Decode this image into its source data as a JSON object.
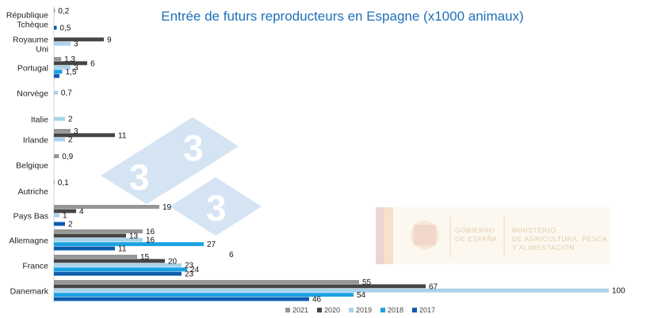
{
  "chart_data": {
    "type": "bar",
    "orientation": "horizontal",
    "title": "Entrée de futurs reproducteurs en Espagne (x1000 animaux)",
    "categories": [
      [
        "République",
        "Tchèque"
      ],
      [
        "Royaume",
        "Uni"
      ],
      [
        "Portugal"
      ],
      [
        "Norvège"
      ],
      [
        "Italie"
      ],
      [
        "Irlande"
      ],
      [
        "Belgique"
      ],
      [
        "Autriche"
      ],
      [
        "Pays Bas"
      ],
      [
        "Allemagne"
      ],
      [
        "France"
      ],
      [
        "Danemark"
      ]
    ],
    "series": [
      {
        "name": "2021",
        "color": "#969696",
        "values": [
          0.2,
          null,
          1.3,
          null,
          null,
          3,
          0.9,
          0.1,
          19,
          16,
          15,
          55
        ],
        "labels": [
          "0,2",
          "",
          "1,3",
          "",
          "",
          "3",
          "0,9",
          "0,1",
          "19",
          "16",
          "15",
          "55"
        ]
      },
      {
        "name": "2020",
        "color": "#454545",
        "values": [
          null,
          9,
          6,
          null,
          null,
          11,
          null,
          null,
          4,
          13,
          20,
          67
        ],
        "labels": [
          "",
          "9",
          "6",
          "",
          "",
          "11",
          "",
          "",
          "4",
          "13",
          "20",
          "67"
        ]
      },
      {
        "name": "2019",
        "color": "#a9d3ea",
        "values": [
          null,
          3,
          3,
          0.7,
          2,
          2,
          null,
          null,
          1,
          16,
          23,
          100
        ],
        "labels": [
          "",
          "3",
          "3",
          "0,7",
          "2",
          "2",
          "",
          "",
          "1",
          "16",
          "23",
          "100"
        ]
      },
      {
        "name": "2018",
        "color": "#1ba1e2",
        "values": [
          null,
          null,
          1.5,
          null,
          null,
          null,
          null,
          null,
          null,
          27,
          24,
          54
        ],
        "labels": [
          "",
          "",
          "1,5",
          "",
          "",
          "",
          "",
          "",
          "",
          "27",
          "24",
          "54"
        ]
      },
      {
        "name": "2017",
        "color": "#0b5cad",
        "values": [
          0.5,
          null,
          1,
          null,
          null,
          null,
          null,
          null,
          2,
          11,
          23,
          46
        ],
        "labels": [
          "0,5",
          "",
          "",
          "",
          "",
          "",
          "",
          "",
          "2",
          "11",
          "23",
          "46"
        ]
      }
    ],
    "stray_labels": [
      "6"
    ],
    "xlim": [
      0,
      100
    ],
    "grid": false,
    "legend_position": "bottom"
  },
  "watermark": {
    "digits": [
      "3",
      "3",
      "3"
    ],
    "logo_text_left": [
      "GOBIERNO",
      "DE ESPAÑA"
    ],
    "logo_text_right": [
      "MINISTERIO",
      "DE AGRICULTURA, PESCA",
      "Y ALIMENTACIÓN"
    ]
  },
  "colors": {
    "title": "#1f6fb8",
    "watermark_blue": "#6d9fd6"
  }
}
